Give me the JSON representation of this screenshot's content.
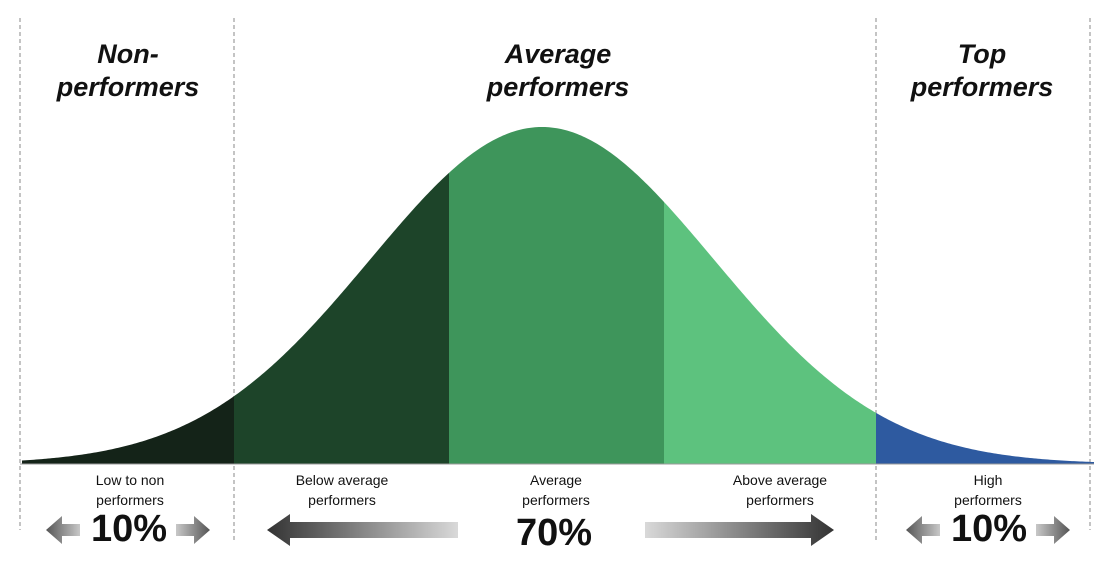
{
  "headers": {
    "left": [
      "Non-",
      "performers"
    ],
    "center": [
      "Average",
      "performers"
    ],
    "right": [
      "Top",
      "performers"
    ]
  },
  "segments": [
    {
      "label": [
        "Low to non",
        "performers"
      ],
      "color": "#142318"
    },
    {
      "label": [
        "Below average",
        "performers"
      ],
      "color": "#1d4429"
    },
    {
      "label": [
        "Average",
        "performers"
      ],
      "color": "#3e955b"
    },
    {
      "label": [
        "Above average",
        "performers"
      ],
      "color": "#5dc27e"
    },
    {
      "label": [
        "High",
        "performers"
      ],
      "color": "#2e5aa0"
    }
  ],
  "percentages": {
    "left": "10%",
    "center": "70%",
    "right": "10%"
  }
}
